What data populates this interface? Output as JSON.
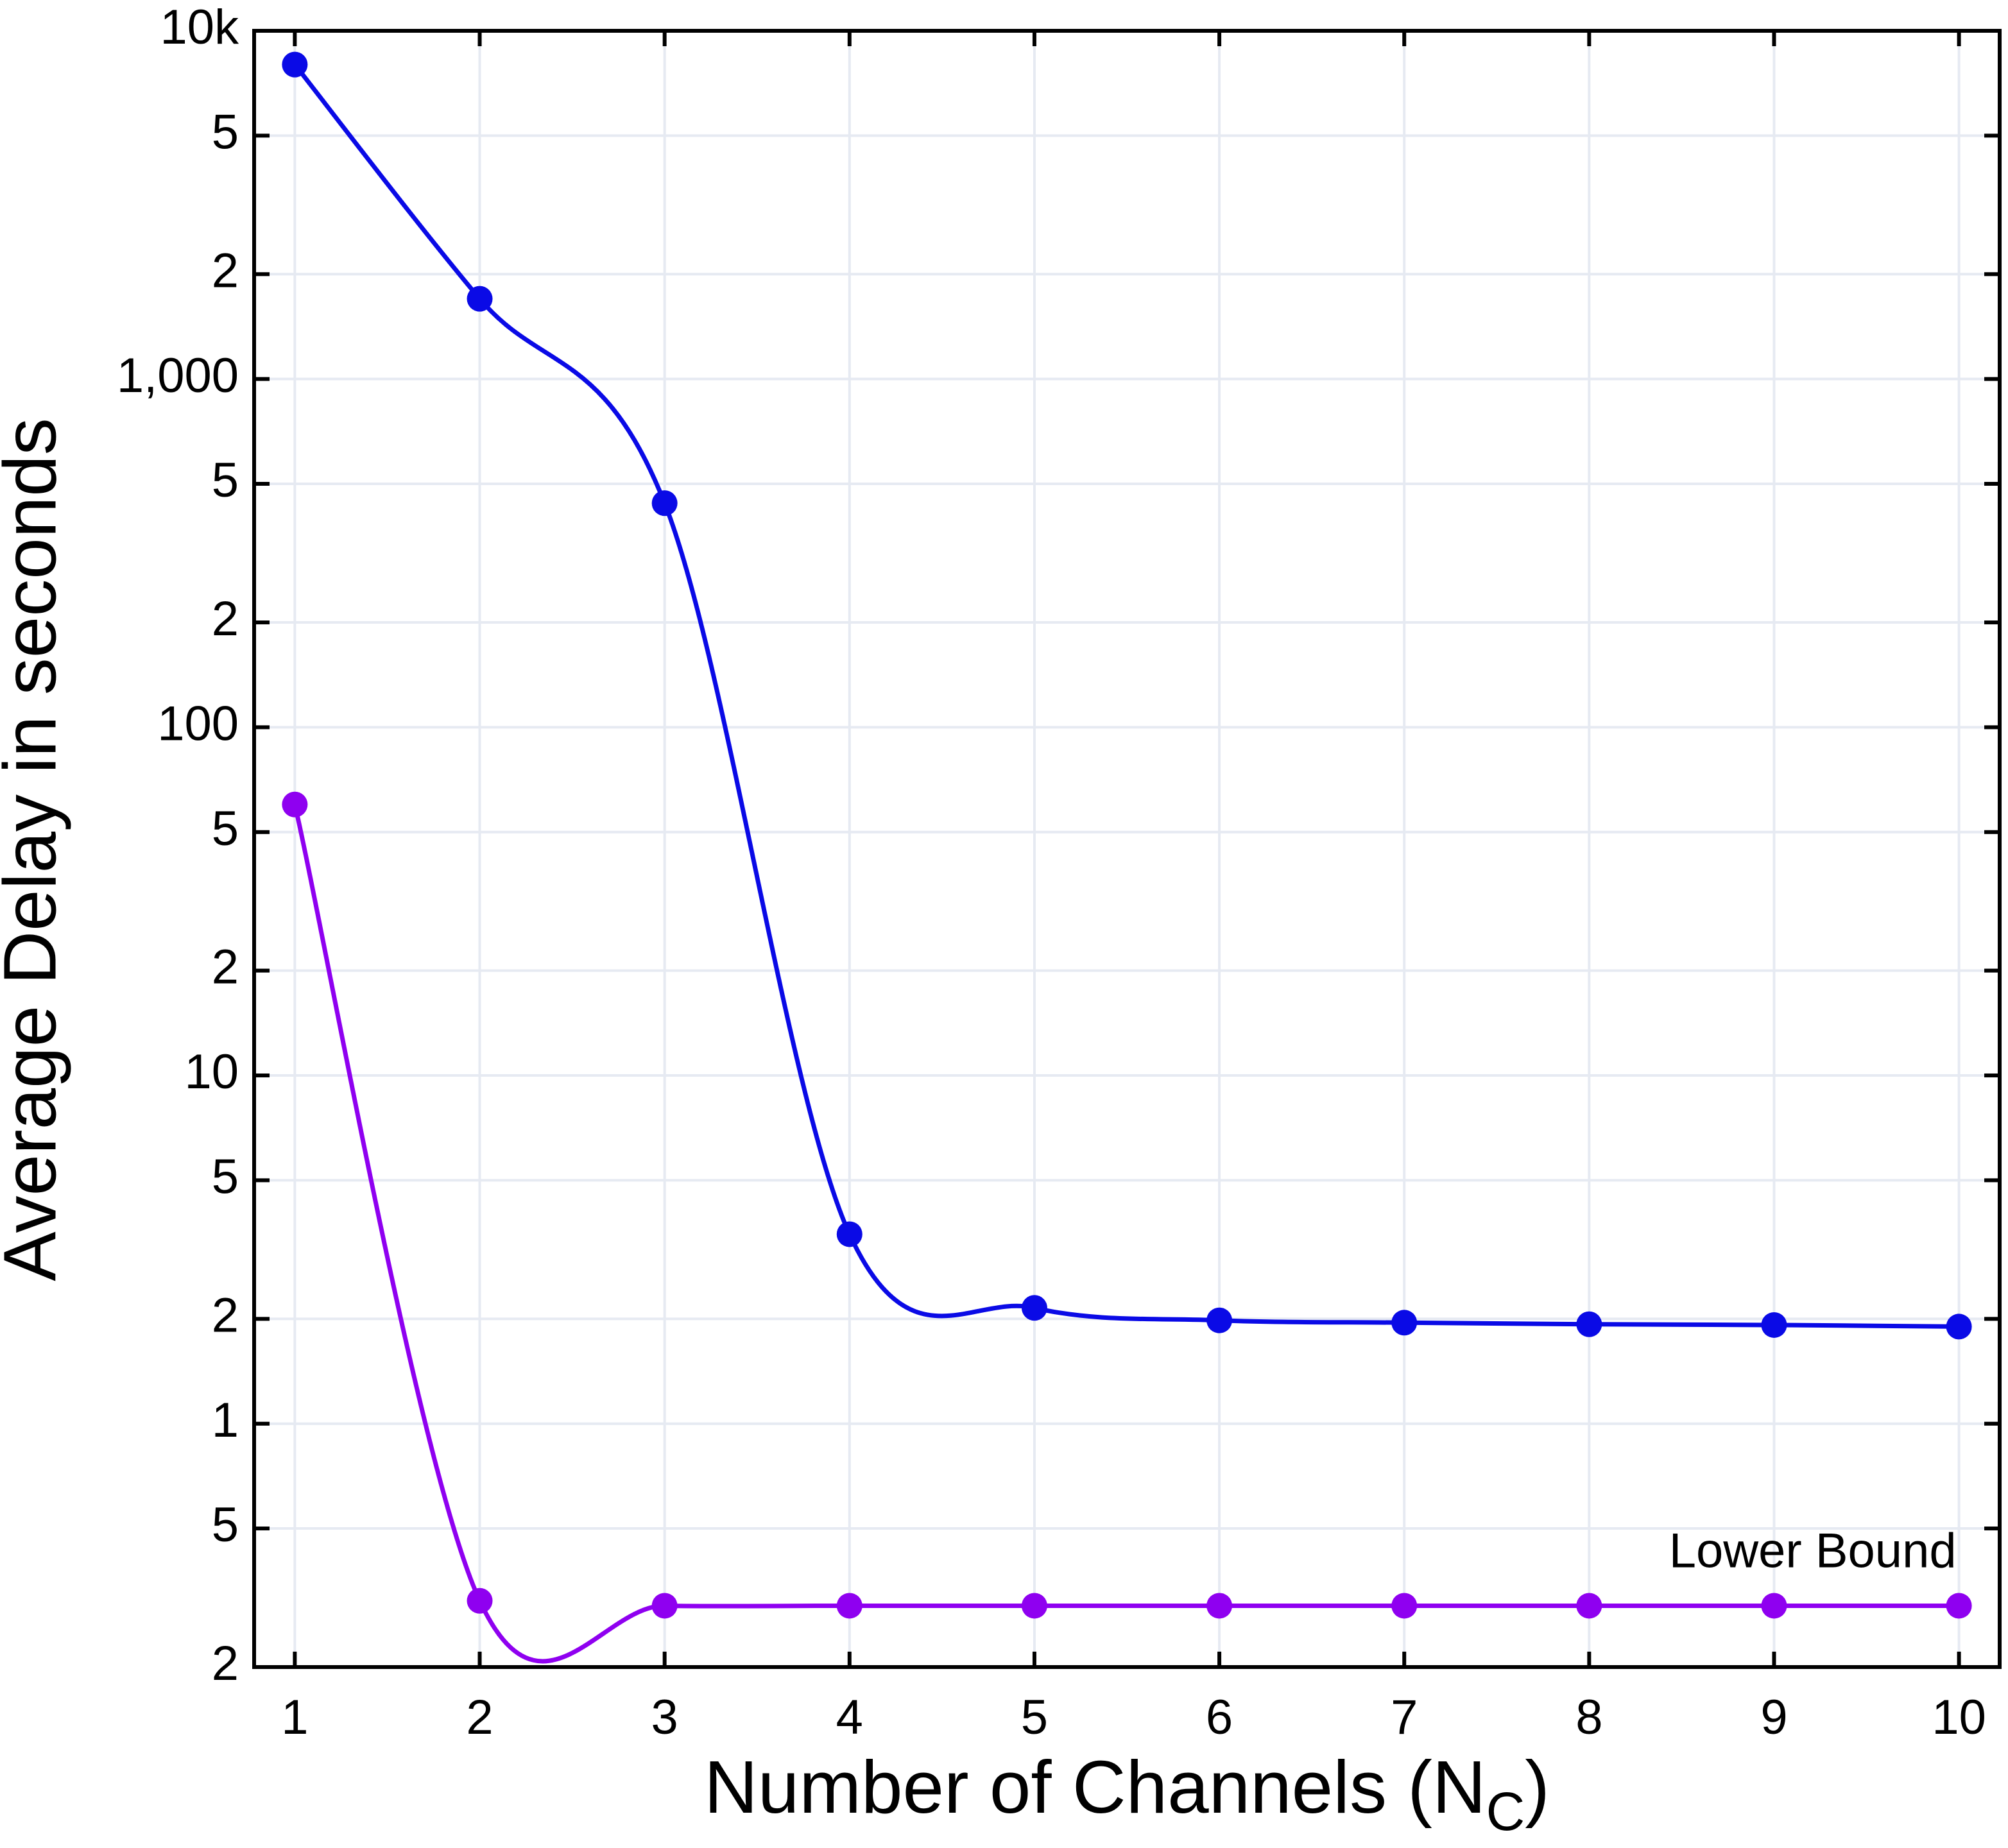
{
  "chart_data": {
    "type": "line",
    "xlabel": [
      "Number of Channels (N",
      "C",
      ")"
    ],
    "ylabel": "Average Delay in seconds",
    "x": [
      1,
      2,
      3,
      4,
      5,
      6,
      7,
      8,
      9,
      10
    ],
    "series": [
      {
        "color": "#0a0ae6",
        "values": [
          8000,
          1700,
          440,
          3.5,
          2.15,
          1.98,
          1.95,
          1.93,
          1.92,
          1.9
        ]
      },
      {
        "color": "#8f00f0",
        "values": [
          60,
          0.31,
          0.3,
          0.3,
          0.3,
          0.3,
          0.3,
          0.3,
          0.3,
          0.3
        ]
      }
    ],
    "annotation": "Lower Bound",
    "xlim": [
      0.78,
      10.22
    ],
    "xticks": [
      1,
      2,
      3,
      4,
      5,
      6,
      7,
      8,
      9,
      10
    ],
    "ylim": [
      0.2,
      10000
    ],
    "yscale": "log",
    "yticks": [
      {
        "value": 0.2,
        "label": "2"
      },
      {
        "value": 0.5,
        "label": "5"
      },
      1,
      2,
      5,
      10,
      {
        "value": 20,
        "label": "2"
      },
      {
        "value": 50,
        "label": "5"
      },
      100,
      {
        "value": 200,
        "label": "2"
      },
      {
        "value": 500,
        "label": "5"
      },
      {
        "value": 1000,
        "label": "1,000"
      },
      {
        "value": 2000,
        "label": "2"
      },
      {
        "value": 5000,
        "label": "5"
      },
      {
        "value": 10000,
        "label": "10k"
      }
    ],
    "grid": true
  }
}
